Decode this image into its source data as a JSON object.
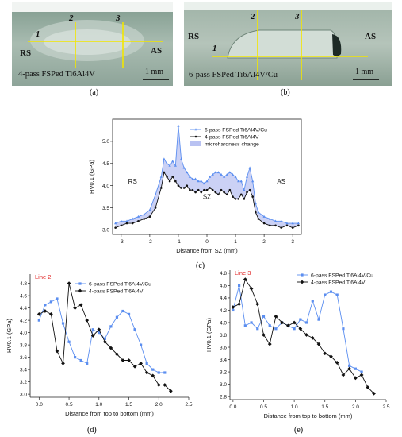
{
  "panels": {
    "a": {
      "caption": "(a)",
      "label_text": "4-pass FSPed Ti6Al4V",
      "scale": "1 mm",
      "rs": "RS",
      "as": "AS",
      "line_nums": [
        "1",
        "2",
        "3"
      ]
    },
    "b": {
      "caption": "(b)",
      "label_text": "6-pass FSPed Ti6Al4V/Cu",
      "scale": "1 mm",
      "rs": "RS",
      "as": "AS",
      "line_nums": [
        "1",
        "2",
        "3"
      ]
    },
    "c": {
      "caption": "(c)"
    },
    "d": {
      "caption": "(d)"
    },
    "e": {
      "caption": "(e)"
    }
  },
  "colors": {
    "series_cu": "#5b8ef0",
    "series_ti": "#111111",
    "band": "#b9c2f2",
    "yellow": "#f2e600",
    "red_label": "#e02020"
  },
  "chart_data": [
    {
      "id": "c",
      "type": "line",
      "xlabel": "Distance from SZ  (mm)",
      "ylabel": "HV0.1 (GPa)",
      "xlim": [
        -3.3,
        3.3
      ],
      "ylim": [
        2.9,
        5.5
      ],
      "xticks": [
        -3,
        -2,
        -1,
        0,
        1,
        2,
        3
      ],
      "yticks": [
        3.0,
        3.5,
        4.0,
        4.5,
        5.0
      ],
      "annotations": [
        "RS",
        "SZ",
        "AS"
      ],
      "legend": [
        "6-pass FSPed Ti6Al4V/Cu",
        "4-pass FSPed Ti6Al4V",
        "microhardness change"
      ],
      "series": [
        {
          "name": "6-pass FSPed Ti6Al4V/Cu",
          "x": [
            -3.2,
            -3.0,
            -2.8,
            -2.6,
            -2.4,
            -2.2,
            -2.0,
            -1.8,
            -1.6,
            -1.5,
            -1.4,
            -1.3,
            -1.2,
            -1.1,
            -1.0,
            -0.9,
            -0.8,
            -0.7,
            -0.6,
            -0.5,
            -0.4,
            -0.3,
            -0.2,
            -0.1,
            0.0,
            0.1,
            0.2,
            0.3,
            0.4,
            0.5,
            0.6,
            0.7,
            0.8,
            0.9,
            1.0,
            1.1,
            1.2,
            1.3,
            1.4,
            1.5,
            1.6,
            1.7,
            1.8,
            2.0,
            2.2,
            2.4,
            2.6,
            2.8,
            3.0,
            3.2
          ],
          "y": [
            3.15,
            3.2,
            3.2,
            3.25,
            3.3,
            3.35,
            3.45,
            3.8,
            4.2,
            4.6,
            4.5,
            4.45,
            4.55,
            4.45,
            5.35,
            4.6,
            4.4,
            4.3,
            4.2,
            4.15,
            4.15,
            4.1,
            4.1,
            4.05,
            4.1,
            4.2,
            4.25,
            4.3,
            4.3,
            4.25,
            4.2,
            4.25,
            4.3,
            4.25,
            4.2,
            4.1,
            4.1,
            3.9,
            4.2,
            4.4,
            4.1,
            3.6,
            3.4,
            3.3,
            3.25,
            3.2,
            3.2,
            3.15,
            3.15,
            3.15
          ]
        },
        {
          "name": "4-pass FSPed Ti6Al4V",
          "x": [
            -3.2,
            -3.0,
            -2.8,
            -2.6,
            -2.4,
            -2.2,
            -2.0,
            -1.8,
            -1.6,
            -1.5,
            -1.4,
            -1.3,
            -1.2,
            -1.1,
            -1.0,
            -0.9,
            -0.8,
            -0.7,
            -0.6,
            -0.5,
            -0.4,
            -0.3,
            -0.2,
            -0.1,
            0.0,
            0.1,
            0.2,
            0.3,
            0.4,
            0.5,
            0.6,
            0.7,
            0.8,
            0.9,
            1.0,
            1.1,
            1.2,
            1.3,
            1.4,
            1.5,
            1.6,
            1.7,
            1.8,
            2.0,
            2.2,
            2.4,
            2.6,
            2.8,
            3.0,
            3.2
          ],
          "y": [
            3.05,
            3.1,
            3.15,
            3.15,
            3.2,
            3.25,
            3.3,
            3.5,
            3.95,
            4.3,
            4.2,
            4.1,
            4.2,
            4.1,
            4.0,
            3.95,
            3.95,
            4.0,
            3.9,
            3.9,
            3.85,
            3.9,
            3.85,
            3.9,
            3.9,
            3.95,
            3.9,
            3.85,
            3.8,
            3.9,
            3.85,
            3.8,
            3.9,
            3.75,
            3.7,
            3.7,
            3.8,
            3.7,
            3.85,
            3.9,
            3.75,
            3.4,
            3.25,
            3.15,
            3.1,
            3.1,
            3.05,
            3.1,
            3.05,
            3.1
          ]
        }
      ]
    },
    {
      "id": "d",
      "type": "line",
      "title": "Line 2",
      "xlabel": "Distance from top to bottom (mm)",
      "ylabel": "HV0.1 (GPa)",
      "xlim": [
        -0.15,
        2.5
      ],
      "ylim": [
        2.95,
        4.95
      ],
      "xticks": [
        0.0,
        0.5,
        1.0,
        1.5,
        2.0,
        2.5
      ],
      "yticks": [
        3.0,
        3.2,
        3.4,
        3.6,
        3.8,
        4.0,
        4.2,
        4.4,
        4.6,
        4.8
      ],
      "legend": [
        "6-pass FSPed Ti6Al4V/Cu",
        "4-pass FSPed Ti6Al4V"
      ],
      "series": [
        {
          "name": "6-pass FSPed Ti6Al4V/Cu",
          "x": [
            0.0,
            0.1,
            0.2,
            0.3,
            0.4,
            0.5,
            0.6,
            0.7,
            0.8,
            0.9,
            1.0,
            1.1,
            1.2,
            1.3,
            1.4,
            1.5,
            1.6,
            1.7,
            1.8,
            1.9,
            2.0,
            2.1
          ],
          "y": [
            4.2,
            4.45,
            4.5,
            4.55,
            4.15,
            3.85,
            3.6,
            3.55,
            3.5,
            4.05,
            4.0,
            3.9,
            4.1,
            4.25,
            4.35,
            4.3,
            4.05,
            3.8,
            3.5,
            3.4,
            3.35,
            3.35
          ]
        },
        {
          "name": "4-pass FSPed Ti6Al4V",
          "x": [
            0.0,
            0.1,
            0.2,
            0.3,
            0.4,
            0.5,
            0.6,
            0.7,
            0.8,
            0.9,
            1.0,
            1.1,
            1.2,
            1.3,
            1.4,
            1.5,
            1.6,
            1.7,
            1.8,
            1.9,
            2.0,
            2.1,
            2.2
          ],
          "y": [
            4.3,
            4.35,
            4.3,
            3.7,
            3.5,
            4.8,
            4.4,
            4.45,
            4.2,
            3.95,
            4.05,
            3.85,
            3.75,
            3.65,
            3.55,
            3.55,
            3.45,
            3.5,
            3.35,
            3.3,
            3.15,
            3.15,
            3.05
          ]
        }
      ]
    },
    {
      "id": "e",
      "type": "line",
      "title": "Line 3",
      "xlabel": "Distance from top to bottom (mm)",
      "ylabel": "HV0.1 (GPa)",
      "xlim": [
        -0.05,
        2.5
      ],
      "ylim": [
        2.75,
        4.85
      ],
      "xticks": [
        0.0,
        0.5,
        1.0,
        1.5,
        2.0,
        2.5
      ],
      "yticks": [
        2.8,
        3.0,
        3.2,
        3.4,
        3.6,
        3.8,
        4.0,
        4.2,
        4.4,
        4.6,
        4.8
      ],
      "legend": [
        "6-pass FSPed Ti6Al4V/Cu",
        "4-pass FSPed Ti6Al4V"
      ],
      "series": [
        {
          "name": "6-pass FSPed Ti6Al4V/Cu",
          "x": [
            0.0,
            0.1,
            0.2,
            0.3,
            0.4,
            0.5,
            0.6,
            0.7,
            0.8,
            0.9,
            1.0,
            1.1,
            1.2,
            1.3,
            1.4,
            1.5,
            1.6,
            1.7,
            1.8,
            1.9,
            2.0,
            2.1
          ],
          "y": [
            4.2,
            4.6,
            3.95,
            4.0,
            3.9,
            4.1,
            3.95,
            3.9,
            4.0,
            3.95,
            3.9,
            4.05,
            4.0,
            4.35,
            4.05,
            4.45,
            4.5,
            4.45,
            3.9,
            3.3,
            3.25,
            3.2
          ]
        },
        {
          "name": "4-pass FSPed Ti6Al4V",
          "x": [
            0.0,
            0.1,
            0.2,
            0.3,
            0.4,
            0.5,
            0.6,
            0.7,
            0.8,
            0.9,
            1.0,
            1.1,
            1.2,
            1.3,
            1.4,
            1.5,
            1.6,
            1.7,
            1.8,
            1.9,
            2.0,
            2.1,
            2.2,
            2.3
          ],
          "y": [
            4.25,
            4.3,
            4.7,
            4.55,
            4.3,
            3.8,
            3.65,
            4.1,
            4.0,
            3.95,
            4.0,
            3.9,
            3.8,
            3.75,
            3.65,
            3.5,
            3.45,
            3.35,
            3.15,
            3.25,
            3.1,
            3.15,
            2.95,
            2.85
          ]
        }
      ]
    }
  ]
}
